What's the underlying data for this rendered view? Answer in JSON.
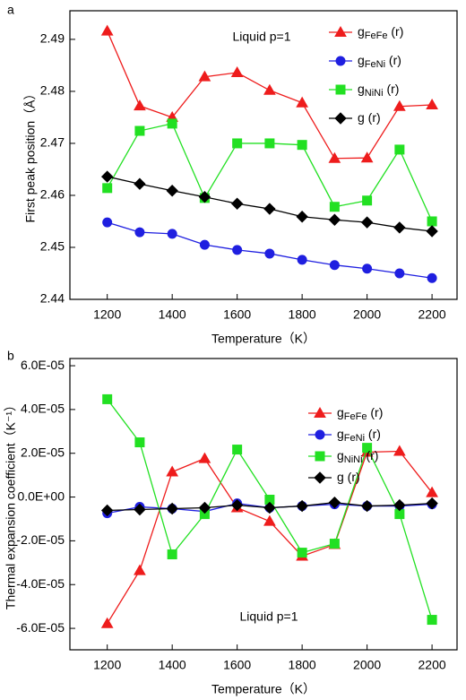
{
  "chart_data": [
    {
      "type": "line",
      "label": "a",
      "annotation": "Liquid p=1",
      "xlabel": "Temperature（K）",
      "ylabel": "First peak position（Å）",
      "x": [
        1200,
        1300,
        1400,
        1500,
        1600,
        1700,
        1800,
        1900,
        2000,
        2100,
        2200
      ],
      "xlim": [
        1085,
        2277
      ],
      "xticks": [
        1200,
        1400,
        1600,
        1800,
        2000,
        2200
      ],
      "ylim": [
        2.44,
        2.4955
      ],
      "yticks": [
        2.44,
        2.45,
        2.46,
        2.47,
        2.48,
        2.49
      ],
      "series": [
        {
          "name": "gFeFe (r)",
          "color": "#ee1c1c",
          "marker": "triangle",
          "values": [
            2.4916,
            2.4772,
            2.475,
            2.4828,
            2.4836,
            2.4802,
            2.4778,
            2.4671,
            2.4672,
            2.4771,
            2.4774
          ]
        },
        {
          "name": "gFeNi (r)",
          "color": "#1f1fe0",
          "marker": "circle",
          "values": [
            2.4548,
            2.4529,
            2.4526,
            2.4505,
            2.4495,
            2.4488,
            2.4476,
            2.4466,
            2.4459,
            2.445,
            2.4441
          ]
        },
        {
          "name": "gNiNi (r)",
          "color": "#22e022",
          "marker": "square",
          "values": [
            2.4614,
            2.4724,
            2.4738,
            2.4595,
            2.47,
            2.47,
            2.4697,
            2.4578,
            2.459,
            2.4688,
            2.455
          ]
        },
        {
          "name": "g (r)",
          "color": "#000000",
          "marker": "diamond",
          "values": [
            2.4636,
            2.4622,
            2.4609,
            2.4597,
            2.4584,
            2.4574,
            2.4559,
            2.4553,
            2.4548,
            2.4538,
            2.4531
          ]
        }
      ]
    },
    {
      "type": "line",
      "label": "b",
      "annotation": "Liquid p=1",
      "xlabel": "Temperature（K）",
      "ylabel": "Thermal expansion coefficient（K⁻¹）",
      "x": [
        1200,
        1300,
        1400,
        1500,
        1600,
        1700,
        1800,
        1900,
        2000,
        2100,
        2200
      ],
      "xlim": [
        1085,
        2277
      ],
      "xticks": [
        1200,
        1400,
        1600,
        1800,
        2000,
        2200
      ],
      "ylim": [
        -6.98e-05,
        6.33e-05
      ],
      "yticks": [
        {
          "value": -6e-05,
          "label": "-6.0E-05"
        },
        {
          "value": -4e-05,
          "label": "-4.0E-05"
        },
        {
          "value": -2e-05,
          "label": "-2.0E-05"
        },
        {
          "value": 0,
          "label": "0.0E+00"
        },
        {
          "value": 2e-05,
          "label": "2.0E-05"
        },
        {
          "value": 4e-05,
          "label": "4.0E-05"
        },
        {
          "value": 6e-05,
          "label": "6.0E-05"
        }
      ],
      "series": [
        {
          "name": "gFeFe (r)",
          "color": "#ee1c1c",
          "marker": "triangle",
          "values": [
            -5.78e-05,
            -3.36e-05,
            1.15e-05,
            1.76e-05,
            -4.9e-06,
            -1.11e-05,
            -2.7e-05,
            -2.17e-05,
            2.05e-05,
            2.09e-05,
            2e-06
          ]
        },
        {
          "name": "gFeNi (r)",
          "color": "#1f1fe0",
          "marker": "circle",
          "values": [
            -7.4e-06,
            -4.5e-06,
            -5.3e-06,
            -6.6e-06,
            -2.9e-06,
            -4.9e-06,
            -4.1e-06,
            -3.3e-06,
            -4.1e-06,
            -4.1e-06,
            -3.3e-06
          ]
        },
        {
          "name": "gNiNi (r)",
          "color": "#22e022",
          "marker": "square",
          "values": [
            4.47e-05,
            2.5e-05,
            -2.62e-05,
            -7.8e-06,
            2.17e-05,
            -1.2e-06,
            -2.54e-05,
            -2.13e-05,
            2.25e-05,
            -7.8e-06,
            -5.61e-05
          ]
        },
        {
          "name": "g (r)",
          "color": "#000000",
          "marker": "diamond",
          "values": [
            -6.1e-06,
            -5.7e-06,
            -5.3e-06,
            -4.9e-06,
            -3.7e-06,
            -4.9e-06,
            -4.1e-06,
            -2.5e-06,
            -4.1e-06,
            -3.7e-06,
            -2.9e-06
          ]
        }
      ]
    }
  ]
}
